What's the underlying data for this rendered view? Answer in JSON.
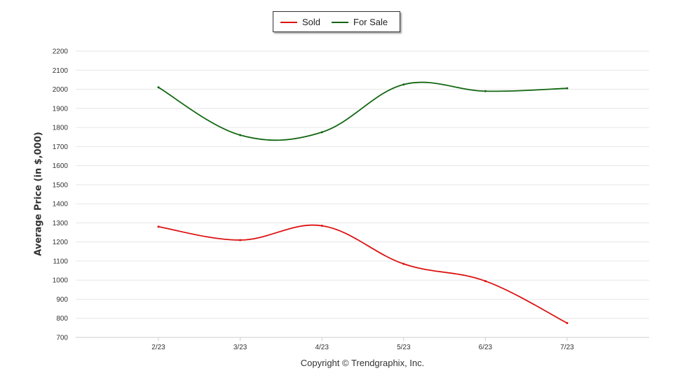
{
  "chart_data": {
    "type": "line",
    "categories": [
      "2/23",
      "3/23",
      "4/23",
      "5/23",
      "6/23",
      "7/23"
    ],
    "series": [
      {
        "name": "Sold",
        "color": "#dd1111",
        "values": [
          1280,
          1210,
          1285,
          1085,
          995,
          775
        ]
      },
      {
        "name": "For Sale",
        "color": "#116611",
        "values": [
          2010,
          1760,
          1775,
          2025,
          1990,
          2005
        ]
      }
    ],
    "ylabel": "Average Price (in $,000)",
    "xlabel": "",
    "ylim": [
      700,
      2200
    ],
    "yticks": [
      "700",
      "800",
      "900",
      "1000",
      "1100",
      "1200",
      "1300",
      "1400",
      "1500",
      "1600",
      "1700",
      "1800",
      "1900",
      "2000",
      "2100",
      "2200"
    ],
    "grid": true,
    "legend_position": "top-center"
  },
  "footer": {
    "copyright": "Copyright © Trendgraphix, Inc."
  }
}
